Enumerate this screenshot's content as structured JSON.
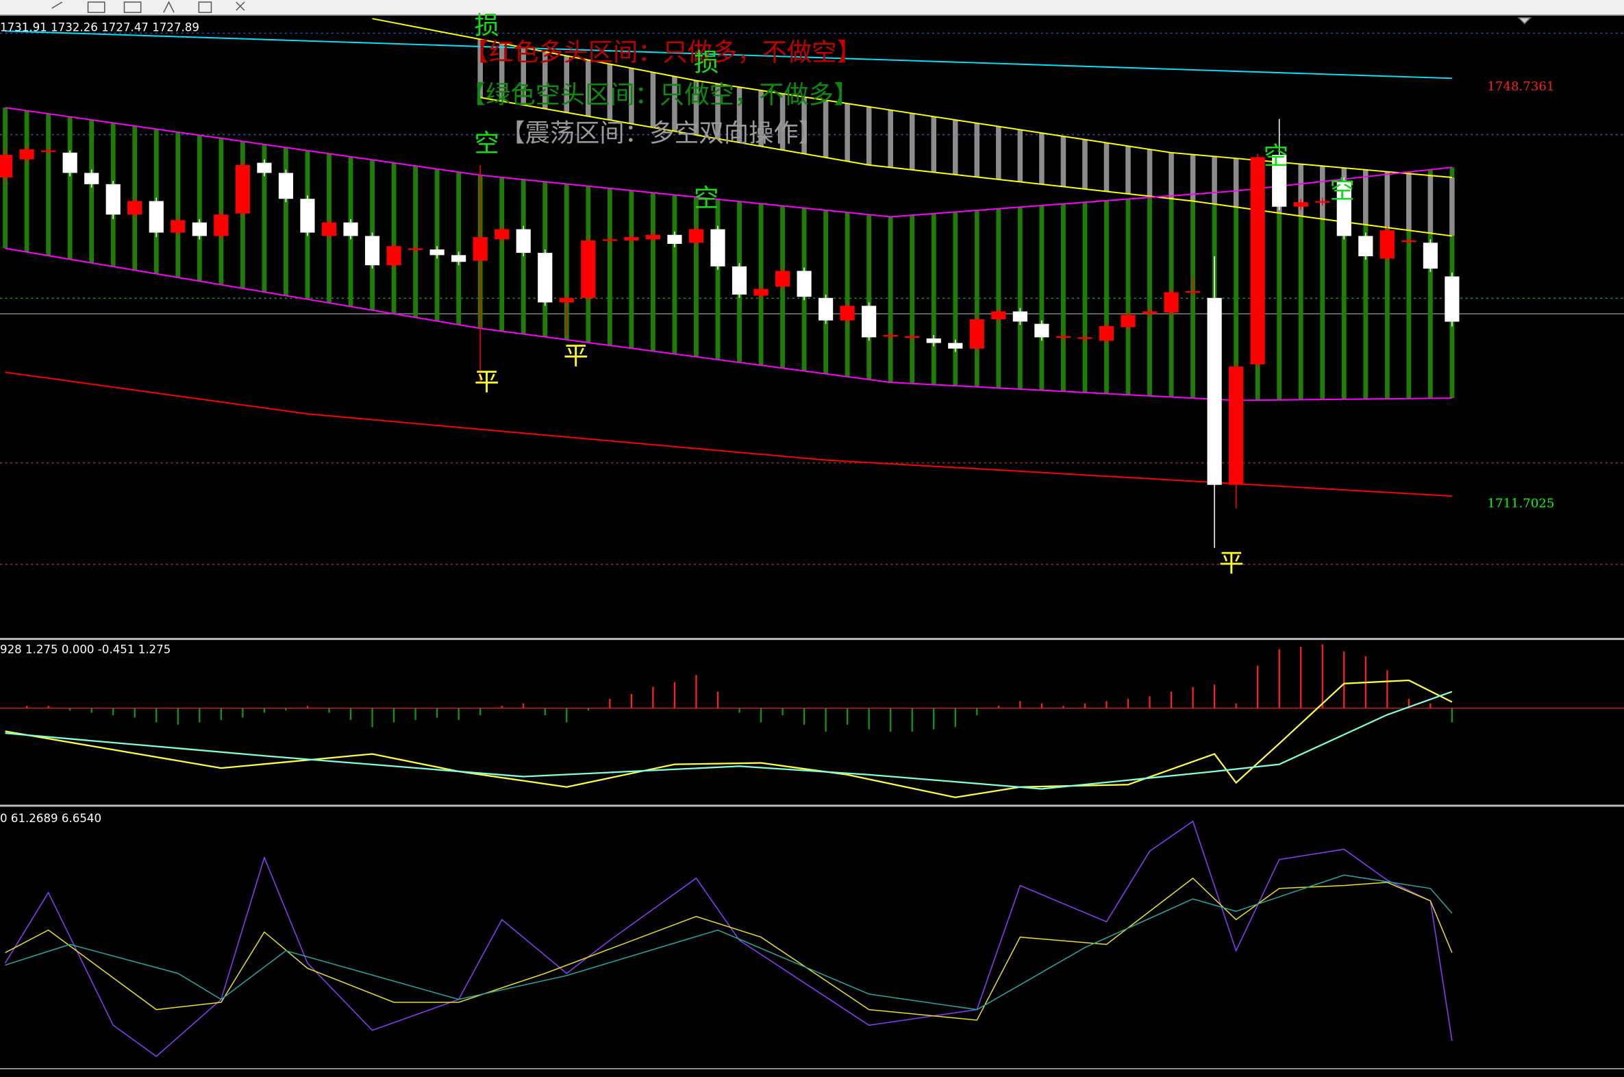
{
  "chart_data": [
    {
      "type": "candlestick",
      "ohlc_label": "1731.91 1732.26 1727.47 1727.89",
      "legend_notes": [
        "【红色多头区间：只做多，不做空】",
        "【绿色空头区间：只做空，不做多】",
        "【震荡区间：多空双向操作】"
      ],
      "annotations": [
        "损",
        "损",
        "空",
        "空",
        "空",
        "空",
        "平",
        "平",
        "平"
      ],
      "ylim": [
        1699.9,
        1754.8
      ],
      "price_markers": [
        {
          "value": 1748.7361,
          "color": "#ff2020"
        },
        {
          "value": 1711.7025,
          "color": "#00ff00"
        }
      ],
      "up_color": "#ff0000",
      "down_color": "#ffffff",
      "candles": {
        "open": [
          1740.7,
          1742.3,
          1743.0,
          1742.9,
          1741.1,
          1740.1,
          1737.4,
          1738.6,
          1735.8,
          1736.7,
          1735.5,
          1737.5,
          1742.0,
          1741.1,
          1738.8,
          1735.5,
          1736.7,
          1735.5,
          1732.9,
          1734.3,
          1734.3,
          1733.8,
          1733.3,
          1735.2,
          1736.1,
          1734.0,
          1729.6,
          1730.0,
          1735.1,
          1735.1,
          1735.2,
          1735.6,
          1734.9,
          1736.1,
          1732.8,
          1730.2,
          1731.0,
          1732.4,
          1730.0,
          1728.0,
          1729.3,
          1726.6,
          1726.5,
          1726.4,
          1726.0,
          1725.5,
          1728.1,
          1728.8,
          1727.7,
          1726.5,
          1726.4,
          1726.2,
          1727.4,
          1728.6,
          1728.7,
          1730.5,
          1730.0,
          1713.4,
          1724.1,
          1742.7,
          1738.1,
          1738.5,
          1740.4,
          1735.5,
          1733.5,
          1735.0,
          1734.9,
          1731.91
        ],
        "high": [
          1743.2,
          1743.5,
          1743.3,
          1743.1,
          1741.4,
          1740.4,
          1738.9,
          1738.9,
          1737.2,
          1737.0,
          1737.7,
          1742.2,
          1742.3,
          1741.4,
          1739.1,
          1737.0,
          1737.0,
          1735.8,
          1734.9,
          1734.6,
          1734.6,
          1734.1,
          1741.8,
          1736.4,
          1736.4,
          1734.3,
          1730.3,
          1735.4,
          1735.4,
          1735.6,
          1735.9,
          1735.9,
          1736.4,
          1736.4,
          1733.1,
          1731.1,
          1732.7,
          1732.7,
          1730.3,
          1729.6,
          1729.6,
          1726.9,
          1726.8,
          1726.7,
          1726.3,
          1728.4,
          1729.1,
          1729.1,
          1728.0,
          1726.8,
          1726.7,
          1727.8,
          1728.8,
          1729.1,
          1730.8,
          1731.9,
          1733.7,
          1724.2,
          1742.8,
          1745.9,
          1738.8,
          1738.9,
          1740.7,
          1735.8,
          1736.3,
          1735.3,
          1735.2,
          1732.26
        ],
        "low": [
          1740.3,
          1742.0,
          1742.8,
          1740.8,
          1739.8,
          1737.0,
          1737.1,
          1735.4,
          1735.5,
          1735.2,
          1735.2,
          1737.2,
          1740.8,
          1738.5,
          1735.5,
          1735.2,
          1735.2,
          1732.6,
          1732.6,
          1734.0,
          1733.5,
          1732.9,
          1722.5,
          1734.9,
          1733.7,
          1729.3,
          1726.6,
          1729.7,
          1734.9,
          1734.9,
          1735.0,
          1734.5,
          1734.6,
          1732.5,
          1730.0,
          1729.9,
          1730.7,
          1729.8,
          1727.7,
          1727.7,
          1726.2,
          1726.3,
          1726.2,
          1725.7,
          1725.2,
          1725.2,
          1727.8,
          1727.6,
          1726.2,
          1726.2,
          1726.1,
          1725.9,
          1727.1,
          1728.3,
          1728.4,
          1730.2,
          1707.8,
          1711.3,
          1723.8,
          1737.8,
          1737.8,
          1738.2,
          1735.2,
          1733.4,
          1733.2,
          1734.8,
          1732.3,
          1727.47
        ],
        "close": [
          1742.7,
          1743.2,
          1743.1,
          1741.1,
          1740.1,
          1737.4,
          1738.6,
          1735.8,
          1736.9,
          1735.5,
          1737.4,
          1741.8,
          1741.1,
          1738.8,
          1735.8,
          1736.7,
          1735.5,
          1732.9,
          1734.6,
          1734.4,
          1733.8,
          1733.2,
          1735.4,
          1736.1,
          1734.0,
          1729.6,
          1730.0,
          1735.1,
          1735.2,
          1735.4,
          1735.6,
          1734.8,
          1736.1,
          1732.8,
          1730.3,
          1730.8,
          1732.4,
          1730.1,
          1728.0,
          1729.3,
          1726.5,
          1726.7,
          1726.6,
          1726.0,
          1725.5,
          1728.1,
          1728.8,
          1727.9,
          1726.5,
          1726.6,
          1726.5,
          1727.5,
          1728.5,
          1728.8,
          1730.5,
          1730.6,
          1713.4,
          1723.9,
          1742.5,
          1738.1,
          1738.5,
          1738.6,
          1735.5,
          1733.7,
          1736.0,
          1735.1,
          1732.6,
          1727.89
        ]
      },
      "lines": [
        {
          "color": "#ffff00",
          "x": [
            17,
            32,
            54,
            67
          ],
          "values": [
            1754.8,
            1749.3,
            1742.9,
            1740.7
          ]
        },
        {
          "color": "#ffff00",
          "x": [
            22,
            40,
            55,
            61,
            67
          ],
          "values": [
            1747.8,
            1741.8,
            1738.6,
            1737.0,
            1735.5
          ]
        },
        {
          "color": "#ff00ff",
          "x": [
            0,
            22,
            41,
            57,
            67
          ],
          "values": [
            1746.9,
            1740.9,
            1737.2,
            1739.5,
            1741.6
          ]
        },
        {
          "color": "#ff00ff",
          "x": [
            0,
            22,
            41,
            57,
            67
          ],
          "values": [
            1734.4,
            1727.3,
            1722.5,
            1720.9,
            1721.1
          ]
        },
        {
          "color": "#ff0000",
          "x": [
            0,
            14,
            38,
            67
          ],
          "values": [
            1723.4,
            1719.7,
            1715.6,
            1712.4
          ]
        },
        {
          "color": "#00e5ff",
          "x": [
            0,
            67
          ],
          "values": [
            1753.7,
            1749.5
          ]
        }
      ]
    },
    {
      "type": "macd",
      "header": "928 1.275 0.000 -0.451 1.275",
      "ylim": [
        -2,
        1.4
      ],
      "up_color": "#ff2020",
      "down_color": "#0f9a0f",
      "histogram": [
        0,
        0.05,
        0.05,
        -0.05,
        -0.1,
        -0.15,
        -0.2,
        -0.3,
        -0.35,
        -0.3,
        -0.25,
        -0.2,
        -0.1,
        -0.05,
        0.05,
        -0.1,
        -0.25,
        -0.4,
        -0.3,
        -0.25,
        -0.2,
        -0.25,
        -0.15,
        0.05,
        0.1,
        -0.15,
        -0.3,
        -0.05,
        0.2,
        0.3,
        0.45,
        0.55,
        0.7,
        0.35,
        -0.1,
        -0.3,
        -0.15,
        -0.35,
        -0.5,
        -0.35,
        -0.45,
        -0.5,
        -0.5,
        -0.45,
        -0.4,
        -0.15,
        0.05,
        0.15,
        0.1,
        0.05,
        0.1,
        0.15,
        0.2,
        0.25,
        0.35,
        0.45,
        0.5,
        0.1,
        0.9,
        1.25,
        1.3,
        1.35,
        1.2,
        1.1,
        0.8,
        0.2,
        0.1,
        -0.3
      ],
      "lines": [
        {
          "color": "#ffff40",
          "x": [
            0,
            10,
            17,
            21,
            26,
            31,
            35,
            39,
            44,
            47,
            52,
            56,
            57,
            59,
            62,
            65,
            67
          ],
          "values": [
            -0.49,
            -1.27,
            -0.97,
            -1.34,
            -1.67,
            -1.19,
            -1.16,
            -1.41,
            -1.89,
            -1.67,
            -1.62,
            -0.97,
            -1.58,
            -0.75,
            0.52,
            0.59,
            0.13
          ]
        },
        {
          "color": "#80ffe0",
          "x": [
            0,
            12,
            24,
            34,
            40,
            48,
            56,
            59,
            64,
            67
          ],
          "values": [
            -0.53,
            -1.01,
            -1.45,
            -1.23,
            -1.41,
            -1.71,
            -1.34,
            -1.19,
            -0.14,
            0.35
          ]
        }
      ]
    },
    {
      "type": "line",
      "header": "0 61.2689 6.6540",
      "ylim": [
        0,
        100
      ],
      "lines": [
        {
          "color": "#8a3cff",
          "x": [
            0,
            2,
            5,
            7,
            10,
            12,
            14,
            17,
            21,
            23,
            26,
            28,
            32,
            34,
            40,
            45,
            47,
            51,
            53,
            55,
            57,
            59,
            62,
            64,
            66,
            67
          ],
          "values": [
            40.4,
            69.4,
            14.9,
            2.1,
            25.5,
            83.8,
            40.4,
            12.8,
            25.5,
            58.3,
            36.2,
            49.8,
            75.3,
            49.8,
            14.9,
            21.3,
            72.3,
            57.4,
            86.4,
            98.7,
            45.5,
            83.0,
            87.2,
            74.5,
            66.0,
            8.5
          ]
        },
        {
          "color": "#e8e020",
          "x": [
            0,
            2,
            7,
            10,
            12,
            14,
            18,
            21,
            25,
            32,
            35,
            40,
            45,
            47,
            51,
            55,
            57,
            59,
            62,
            64,
            66,
            67
          ],
          "values": [
            44.7,
            54.0,
            21.3,
            24.3,
            53.2,
            38.3,
            24.3,
            24.3,
            36.2,
            59.6,
            51.1,
            21.3,
            17.0,
            51.1,
            48.1,
            75.3,
            58.3,
            71.1,
            72.3,
            73.6,
            66.0,
            44.7
          ]
        },
        {
          "color": "#2aa8a0",
          "x": [
            0,
            3,
            8,
            10,
            13,
            21,
            26,
            33,
            40,
            45,
            50,
            55,
            57,
            62,
            66,
            67
          ],
          "values": [
            39.6,
            48.1,
            36.2,
            25.5,
            45.5,
            25.5,
            35.3,
            54.0,
            27.7,
            21.3,
            46.8,
            66.8,
            61.7,
            76.6,
            71.1,
            60.9
          ]
        }
      ]
    }
  ]
}
